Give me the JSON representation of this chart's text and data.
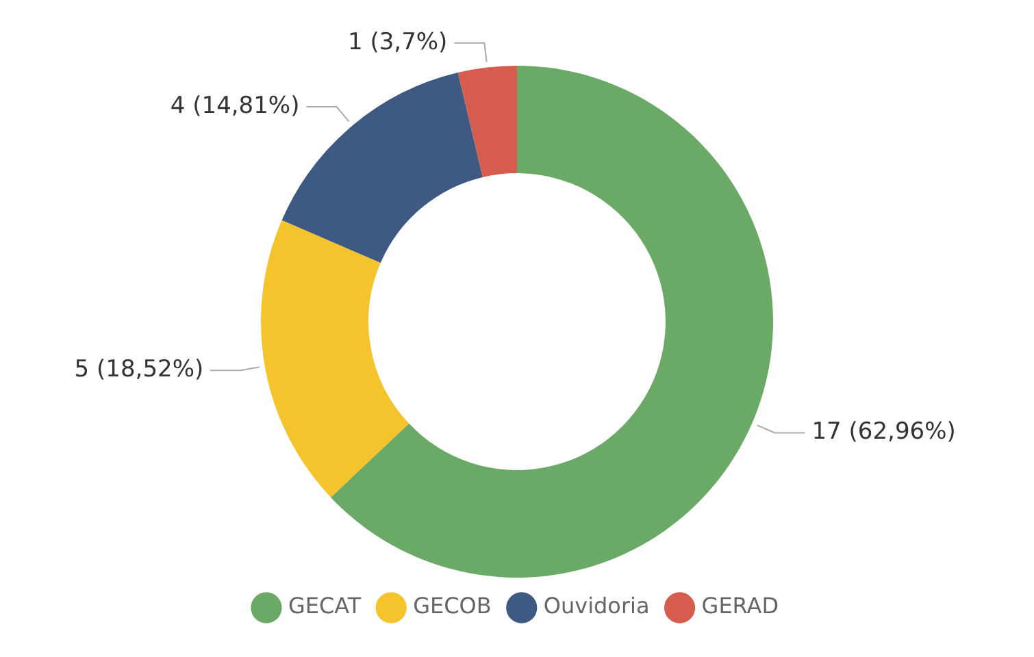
{
  "chart_data": {
    "type": "donut",
    "categories": [
      "GECAT",
      "GECOB",
      "Ouvidoria",
      "GERAD"
    ],
    "values": [
      17,
      5,
      4,
      1
    ],
    "colors": [
      "#6aa966",
      "#f5c42c",
      "#3f5a82",
      "#d65c4e"
    ],
    "value_labels": [
      "17 (62,96%)",
      "5 (18,52%)",
      "4 (14,81%)",
      "1 (3,7%)"
    ],
    "legend": "bottom"
  }
}
